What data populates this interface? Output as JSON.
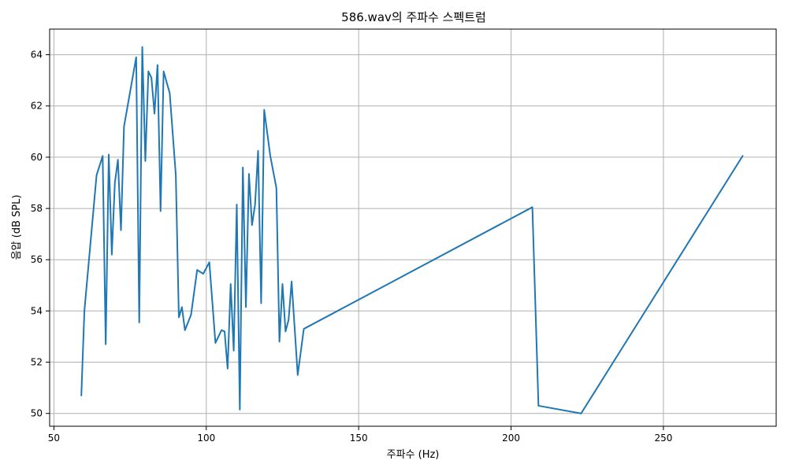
{
  "chart_data": {
    "type": "line",
    "title": "586.wav의 주파수 스펙트럼",
    "xlabel": "주파수 (Hz)",
    "ylabel": "음압 (dB SPL)",
    "xlim": [
      48.6,
      287.0
    ],
    "ylim": [
      49.5,
      65.0
    ],
    "xticks": [
      50,
      100,
      150,
      200,
      250
    ],
    "yticks": [
      50,
      52,
      54,
      56,
      58,
      60,
      62,
      64
    ],
    "grid": true,
    "series": [
      {
        "color": "#1f77b4",
        "x": [
          59.0,
          60.0,
          64.0,
          66.0,
          67.0,
          68.0,
          69.0,
          70.0,
          71.0,
          72.0,
          73.0,
          77.0,
          78.0,
          79.0,
          80.0,
          81.0,
          82.0,
          83.0,
          84.0,
          85.0,
          86.0,
          88.0,
          90.0,
          91.0,
          92.0,
          93.0,
          95.0,
          97.0,
          99.0,
          101.0,
          103.0,
          105.0,
          106.0,
          107.0,
          108.0,
          109.0,
          110.0,
          111.0,
          112.0,
          113.0,
          114.0,
          115.0,
          116.0,
          117.0,
          118.0,
          119.0,
          121.0,
          123.0,
          124.0,
          125.0,
          126.0,
          127.0,
          128.0,
          130.0,
          132.0,
          207.0,
          209.0,
          223.0,
          276.0
        ],
        "y": [
          50.7,
          54.0,
          59.3,
          60.05,
          52.7,
          60.1,
          56.2,
          59.0,
          59.9,
          57.15,
          61.2,
          63.9,
          53.55,
          64.3,
          59.85,
          63.35,
          63.1,
          61.7,
          63.6,
          57.9,
          63.35,
          62.5,
          59.3,
          53.75,
          54.15,
          53.25,
          53.85,
          55.6,
          55.45,
          55.9,
          52.75,
          53.25,
          53.2,
          51.75,
          55.05,
          52.45,
          58.15,
          50.15,
          59.6,
          54.15,
          59.35,
          57.35,
          58.15,
          60.25,
          54.3,
          61.85,
          60.05,
          58.8,
          52.8,
          55.05,
          53.2,
          53.65,
          55.15,
          51.5,
          53.3,
          58.05,
          50.3,
          50.0,
          60.05
        ]
      }
    ]
  }
}
